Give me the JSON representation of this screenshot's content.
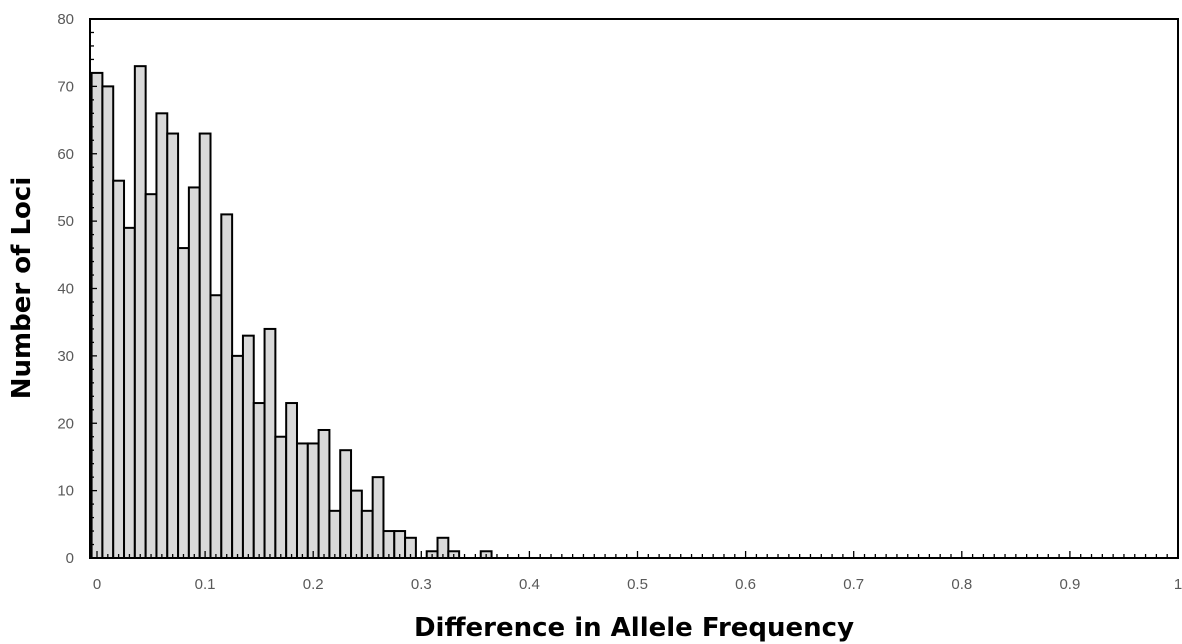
{
  "chart_data": {
    "type": "bar",
    "title": "",
    "xlabel": "Difference in Allele Frequency",
    "ylabel": "Number of Loci",
    "xlim": [
      0,
      1
    ],
    "ylim": [
      0,
      80
    ],
    "bin_width": 0.01,
    "x": [
      0,
      0.01,
      0.02,
      0.03,
      0.04,
      0.05,
      0.06,
      0.07,
      0.08,
      0.09,
      0.1,
      0.11,
      0.12,
      0.13,
      0.14,
      0.15,
      0.16,
      0.17,
      0.18,
      0.19,
      0.2,
      0.21,
      0.22,
      0.23,
      0.24,
      0.25,
      0.26,
      0.27,
      0.28,
      0.29,
      0.3,
      0.31,
      0.32,
      0.33,
      0.34,
      0.35,
      0.36
    ],
    "values": [
      72,
      70,
      56,
      49,
      73,
      54,
      66,
      63,
      46,
      55,
      63,
      39,
      51,
      30,
      33,
      23,
      34,
      18,
      23,
      17,
      17,
      19,
      7,
      16,
      10,
      7,
      12,
      4,
      4,
      3,
      0,
      1,
      3,
      1,
      0,
      0,
      1
    ],
    "x_ticks": [
      "0",
      "0.1",
      "0.2",
      "0.3",
      "0.4",
      "0.5",
      "0.6",
      "0.7",
      "0.8",
      "0.9",
      "1"
    ],
    "y_ticks": [
      "0",
      "10",
      "20",
      "30",
      "40",
      "50",
      "60",
      "70",
      "80"
    ],
    "grid": false,
    "legend": "none",
    "colors": {
      "bar_fill": "#d9d9d9",
      "bar_edge": "#000000",
      "tick_text": "#595959"
    }
  }
}
